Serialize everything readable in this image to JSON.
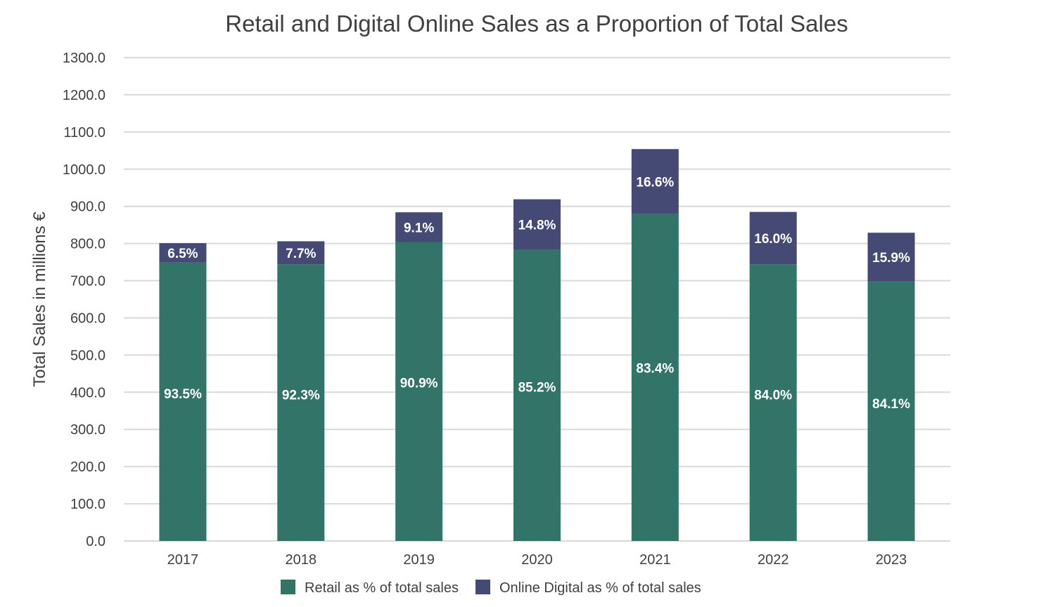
{
  "chart_data": {
    "type": "bar",
    "stacked": true,
    "title": "Retail and Digital Online Sales as a Proportion of Total Sales",
    "xlabel": "",
    "ylabel": "Total Sales in millions €",
    "ylim": [
      0,
      1300
    ],
    "yticks": [
      "0.0",
      "100.0",
      "200.0",
      "300.0",
      "400.0",
      "500.0",
      "600.0",
      "700.0",
      "800.0",
      "900.0",
      "1000.0",
      "1100.0",
      "1200.0",
      "1300.0"
    ],
    "grid": true,
    "legend_position": "bottom",
    "categories": [
      "2017",
      "2018",
      "2019",
      "2020",
      "2021",
      "2022",
      "2023"
    ],
    "series": [
      {
        "name": "Retail as % of total sales",
        "color": "#327468",
        "values": [
          749,
          744,
          804,
          783,
          879,
          744,
          698
        ],
        "labels": [
          "93.5%",
          "92.3%",
          "90.9%",
          "85.2%",
          "83.4%",
          "84.0%",
          "84.1%"
        ]
      },
      {
        "name": "Online Digital as % of total sales",
        "color": "#454a74",
        "values": [
          52,
          62,
          80,
          136,
          175,
          141,
          131
        ],
        "labels": [
          "6.5%",
          "7.7%",
          "9.1%",
          "14.8%",
          "16.6%",
          "16.0%",
          "15.9%"
        ]
      }
    ]
  }
}
